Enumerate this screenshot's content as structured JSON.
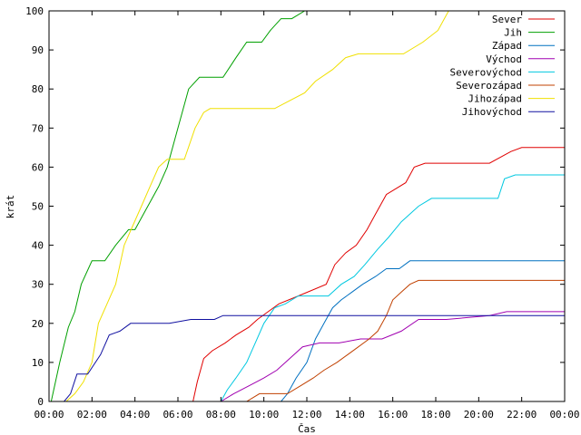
{
  "chart_data": {
    "type": "line",
    "title": "",
    "xlabel": "Čas",
    "ylabel": "krát",
    "xlim": [
      0,
      24
    ],
    "ylim": [
      0,
      100
    ],
    "x_ticks": [
      0,
      2,
      4,
      6,
      8,
      10,
      12,
      14,
      16,
      18,
      20,
      22,
      24
    ],
    "x_tick_labels": [
      "00:00",
      "02:00",
      "04:00",
      "06:00",
      "08:00",
      "10:00",
      "12:00",
      "14:00",
      "16:00",
      "18:00",
      "20:00",
      "22:00",
      "00:00"
    ],
    "y_ticks": [
      0,
      10,
      20,
      30,
      40,
      50,
      60,
      70,
      80,
      90,
      100
    ],
    "y_tick_labels": [
      "0",
      "10",
      "20",
      "30",
      "40",
      "50",
      "60",
      "70",
      "80",
      "90",
      "100"
    ],
    "grid": false,
    "legend_position": "top-right",
    "series": [
      {
        "name": "Sever",
        "color": "#e00000",
        "x": [
          0,
          6.7,
          6.9,
          7.2,
          7.6,
          8.2,
          8.7,
          9.3,
          9.7,
          10.2,
          10.7,
          11.6,
          12.9,
          13.3,
          13.8,
          14.3,
          14.8,
          15.2,
          15.7,
          16.6,
          17.0,
          17.5,
          20.5,
          21.5,
          22.0,
          24
        ],
        "y": [
          0,
          0,
          5,
          11,
          13,
          15,
          17,
          19,
          21,
          23,
          25,
          27,
          30,
          35,
          38,
          40,
          44,
          48,
          53,
          56,
          60,
          61,
          61,
          64,
          65,
          65
        ]
      },
      {
        "name": "Jih",
        "color": "#00a000",
        "x": [
          0,
          0.1,
          0.5,
          0.9,
          1.2,
          1.5,
          2.0,
          2.6,
          3.1,
          3.7,
          4.0,
          4.4,
          4.8,
          5.1,
          5.5,
          6.0,
          6.5,
          7.0,
          7.5,
          8.1,
          8.7,
          9.2,
          9.9,
          10.3,
          10.8,
          11.3,
          11.9,
          24
        ],
        "y": [
          0,
          0,
          10,
          19,
          23,
          30,
          36,
          36,
          40,
          44,
          44,
          48,
          52,
          55,
          60,
          70,
          80,
          83,
          83,
          83,
          88,
          92,
          92,
          95,
          98,
          98,
          100,
          100
        ]
      },
      {
        "name": "Západ",
        "color": "#0070c0",
        "x": [
          0,
          10.8,
          11.1,
          11.5,
          12.0,
          12.4,
          12.8,
          13.2,
          13.6,
          14.1,
          14.6,
          15.2,
          15.7,
          16.3,
          16.8,
          17.2,
          24
        ],
        "y": [
          0,
          0,
          2,
          6,
          10,
          16,
          20,
          24,
          26,
          28,
          30,
          32,
          34,
          34,
          36,
          36,
          36
        ]
      },
      {
        "name": "Východ",
        "color": "#a000b0",
        "x": [
          0,
          8.0,
          8.6,
          9.3,
          10.0,
          10.6,
          11.2,
          11.8,
          12.6,
          13.5,
          14.5,
          15.5,
          16.4,
          17.2,
          18.5,
          20.5,
          21.3,
          24
        ],
        "y": [
          0,
          0,
          2,
          4,
          6,
          8,
          11,
          14,
          15,
          15,
          16,
          16,
          18,
          21,
          21,
          22,
          23,
          23
        ]
      },
      {
        "name": "Severovýchod",
        "color": "#00c8e0",
        "x": [
          0,
          8.0,
          8.3,
          8.7,
          9.2,
          9.6,
          10.0,
          10.5,
          11.0,
          11.6,
          12.3,
          13.0,
          13.6,
          14.2,
          14.7,
          15.3,
          15.8,
          16.4,
          17.2,
          17.8,
          18.4,
          20.9,
          21.2,
          21.7,
          24
        ],
        "y": [
          0,
          0,
          3,
          6,
          10,
          15,
          20,
          24,
          25,
          27,
          27,
          27,
          30,
          32,
          35,
          39,
          42,
          46,
          50,
          52,
          52,
          52,
          57,
          58,
          58
        ]
      },
      {
        "name": "Severozápad",
        "color": "#c04000",
        "x": [
          0,
          9.2,
          9.8,
          10.5,
          11.1,
          11.7,
          12.3,
          12.8,
          13.4,
          13.9,
          14.4,
          14.9,
          15.3,
          15.7,
          16.0,
          16.4,
          16.8,
          17.2,
          24
        ],
        "y": [
          0,
          0,
          2,
          2,
          2,
          4,
          6,
          8,
          10,
          12,
          14,
          16,
          18,
          22,
          26,
          28,
          30,
          31,
          31
        ]
      },
      {
        "name": "Jihozápad",
        "color": "#f0e000",
        "x": [
          0,
          0.8,
          1.2,
          1.6,
          2.0,
          2.3,
          2.7,
          3.1,
          3.5,
          3.9,
          4.3,
          4.7,
          5.1,
          5.5,
          5.9,
          6.3,
          6.8,
          7.2,
          7.5,
          8.2,
          9.0,
          9.8,
          10.5,
          11.2,
          11.9,
          12.4,
          13.2,
          13.8,
          14.4,
          15.5,
          16.5,
          17.4,
          18.1,
          18.6,
          24
        ],
        "y": [
          0,
          0,
          2,
          5,
          10,
          20,
          25,
          30,
          40,
          45,
          50,
          55,
          60,
          62,
          62,
          62,
          70,
          74,
          75,
          75,
          75,
          75,
          75,
          77,
          79,
          82,
          85,
          88,
          89,
          89,
          89,
          92,
          95,
          100,
          100
        ]
      },
      {
        "name": "Jihovýchod",
        "color": "#1010a0",
        "x": [
          0,
          0.7,
          1.0,
          1.3,
          1.8,
          2.4,
          2.8,
          3.3,
          3.8,
          4.6,
          5.6,
          6.6,
          7.2,
          7.7,
          8.1,
          9.0,
          10.0,
          12.0,
          14.0,
          16.0,
          18.0,
          20.0,
          22.0,
          24
        ],
        "y": [
          0,
          0,
          2,
          7,
          7,
          12,
          17,
          18,
          20,
          20,
          20,
          21,
          21,
          21,
          22,
          22,
          22,
          22,
          22,
          22,
          22,
          22,
          22,
          22
        ]
      }
    ]
  }
}
